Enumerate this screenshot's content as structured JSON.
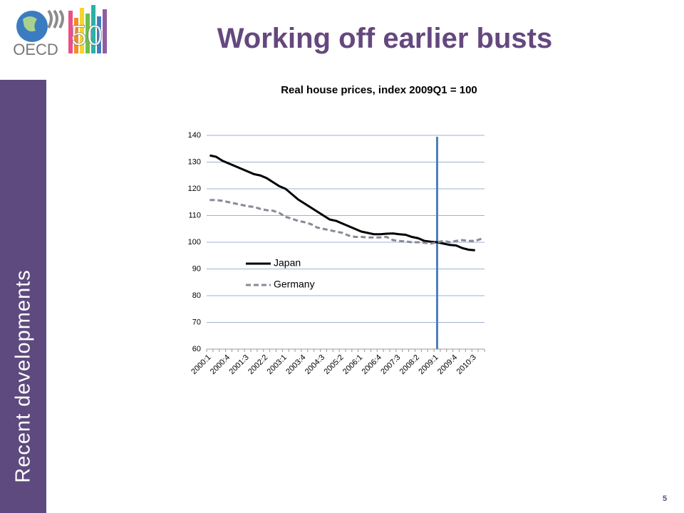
{
  "logo_text": "OECD",
  "logo_number": "50",
  "title": "Working off earlier busts",
  "sidebar": "Recent developments",
  "page_number": "5",
  "chart_data": {
    "type": "line",
    "title": "Real house prices, index 2009Q1 = 100",
    "categories": [
      "2000:1",
      null,
      null,
      "2000:4",
      null,
      null,
      "2001:3",
      null,
      null,
      "2002:2",
      null,
      null,
      "2003:1",
      null,
      null,
      "2003:4",
      null,
      null,
      "2004:3",
      null,
      null,
      "2005:2",
      null,
      null,
      "2006:1",
      null,
      null,
      "2006:4",
      null,
      null,
      "2007:3",
      null,
      null,
      "2008:2",
      null,
      null,
      "2009:1",
      null,
      null,
      "2009:4",
      null,
      null,
      "2010:3",
      null
    ],
    "series": [
      {
        "name": "Japan",
        "color": "#000000",
        "dash": "solid",
        "values": [
          132.5,
          132,
          130.5,
          129.5,
          128.5,
          127.5,
          126.5,
          125.5,
          125,
          124,
          122.5,
          121,
          120,
          118,
          116,
          114.5,
          113,
          111.5,
          110,
          108.5,
          108,
          107,
          106,
          105,
          104,
          103.5,
          103,
          103,
          103.2,
          103.3,
          103,
          102.8,
          102,
          101.5,
          100.5,
          100.2,
          100,
          99.5,
          99,
          98.8,
          97.8,
          97.2,
          97,
          null
        ]
      },
      {
        "name": "Germany",
        "color": "#8a8a96",
        "dash": "dashed",
        "values": [
          115.8,
          115.8,
          115.5,
          115,
          114.5,
          114,
          113.5,
          113.2,
          112.5,
          112,
          111.8,
          111,
          109.5,
          108.8,
          108,
          107.5,
          106.8,
          105.5,
          105,
          104.5,
          104,
          103.5,
          102.5,
          102,
          102,
          101.8,
          101.8,
          101.8,
          102,
          100.8,
          100.5,
          100.3,
          100,
          100,
          99.8,
          99.5,
          100,
          100.5,
          100,
          100.5,
          100.8,
          100.5,
          100.5,
          101.3
        ]
      }
    ],
    "ylim": [
      60,
      140
    ],
    "yticks": [
      60,
      70,
      80,
      90,
      100,
      110,
      120,
      130,
      140
    ],
    "grid": true,
    "highlight": {
      "category": "2009:1",
      "color": "#4f7fbd"
    }
  }
}
